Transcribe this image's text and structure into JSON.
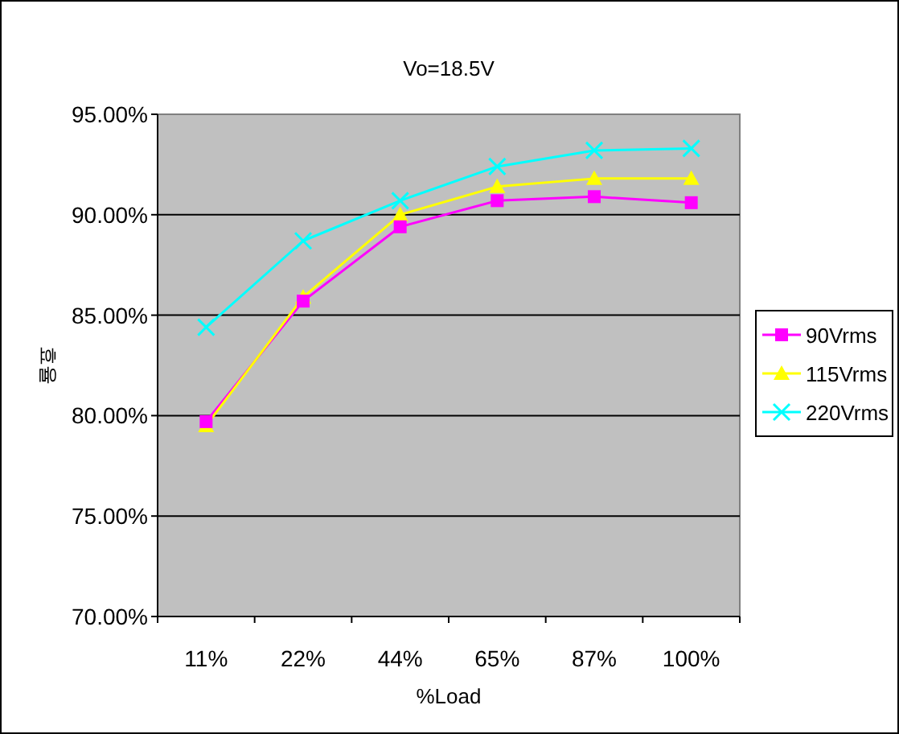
{
  "chart_data": {
    "type": "line",
    "title": "Vo=18.5V",
    "xlabel": "%Load",
    "ylabel": "효율",
    "categories": [
      "11%",
      "22%",
      "44%",
      "65%",
      "87%",
      "100%"
    ],
    "series": [
      {
        "name": "90Vrms",
        "color": "#ff00ff",
        "marker": "square",
        "values": [
          79.7,
          85.7,
          89.4,
          90.7,
          90.9,
          90.6
        ]
      },
      {
        "name": "115Vrms",
        "color": "#ffff00",
        "marker": "triangle",
        "values": [
          79.5,
          85.9,
          90.0,
          91.4,
          91.8,
          91.8
        ]
      },
      {
        "name": "220Vrms",
        "color": "#00ffff",
        "marker": "cross",
        "values": [
          84.4,
          88.7,
          90.7,
          92.4,
          93.2,
          93.3
        ]
      }
    ],
    "ylim": [
      70,
      95
    ],
    "yticks": [
      {
        "value": 70,
        "label": "70.00%"
      },
      {
        "value": 75,
        "label": "75.00%"
      },
      {
        "value": 80,
        "label": "80.00%"
      },
      {
        "value": 85,
        "label": "85.00%"
      },
      {
        "value": 90,
        "label": "90.00%"
      },
      {
        "value": 95,
        "label": "95.00%"
      }
    ],
    "grid": "y",
    "legend": "right"
  }
}
